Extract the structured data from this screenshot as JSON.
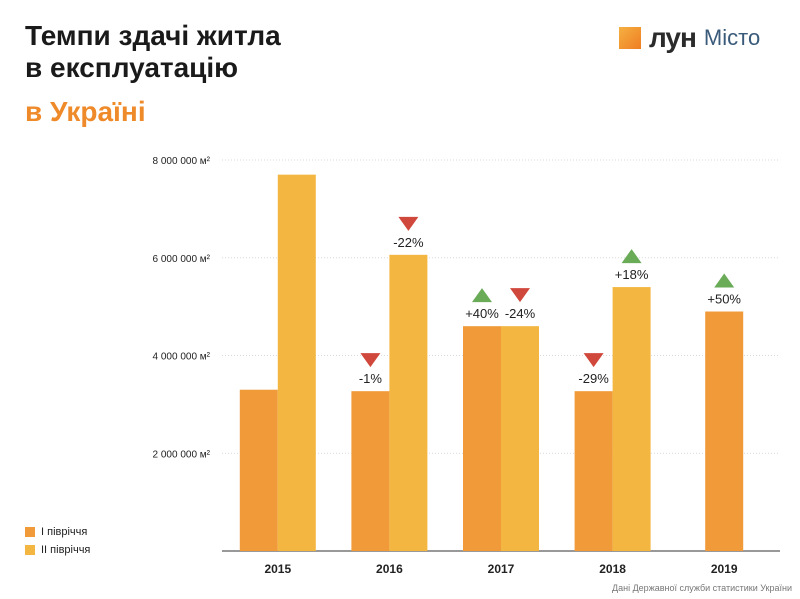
{
  "header": {
    "title_line1": "Темпи здачі житла",
    "title_line2": "в експлуатацію",
    "subtitle": "в Україні"
  },
  "logo": {
    "brand": "лун",
    "sub": "Місто"
  },
  "source": "Дані Державної служби статистики України",
  "chart_data": {
    "type": "bar",
    "title": "Темпи здачі житла в експлуатацію в Україні",
    "categories": [
      "2015",
      "2016",
      "2017",
      "2018",
      "2019"
    ],
    "ylim": [
      0,
      8000000
    ],
    "yticks": [
      {
        "value": 2000000,
        "label": "2 000 000 м²"
      },
      {
        "value": 4000000,
        "label": "4 000 000 м²"
      },
      {
        "value": 6000000,
        "label": "6 000 000 м²"
      },
      {
        "value": 8000000,
        "label": "8 000 000 м²"
      }
    ],
    "grid": true,
    "legend": "bottom-left",
    "series": [
      {
        "name": "І півріччя",
        "color": "#f09a3a",
        "values": [
          3300000,
          3270000,
          4600000,
          3270000,
          4900000
        ],
        "labels": [
          "",
          "-1%",
          "+40%",
          "-29%",
          "+50%"
        ],
        "trends": [
          null,
          "down",
          "up",
          "down",
          "up"
        ]
      },
      {
        "name": "ІІ півріччя",
        "color": "#f3b640",
        "values": [
          7700000,
          6060000,
          4600000,
          5400000,
          null
        ],
        "labels": [
          "",
          "-22%",
          "-24%",
          "+18%",
          ""
        ],
        "trends": [
          null,
          "down",
          "down",
          "up",
          null
        ]
      }
    ],
    "trend_colors": {
      "up": "#6aab57",
      "down": "#d0473b"
    }
  }
}
